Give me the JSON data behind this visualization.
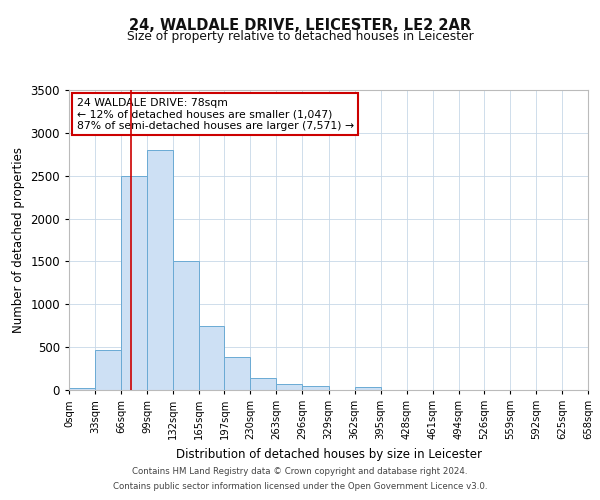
{
  "title": "24, WALDALE DRIVE, LEICESTER, LE2 2AR",
  "subtitle": "Size of property relative to detached houses in Leicester",
  "xlabel": "Distribution of detached houses by size in Leicester",
  "ylabel": "Number of detached properties",
  "bar_color": "#cde0f4",
  "bar_edge_color": "#6aaad4",
  "bin_edges": [
    0,
    33,
    66,
    99,
    132,
    165,
    197,
    230,
    263,
    296,
    329,
    362,
    395,
    428,
    461,
    494,
    526,
    559,
    592,
    625,
    658
  ],
  "bar_heights": [
    25,
    470,
    2500,
    2800,
    1500,
    750,
    390,
    140,
    75,
    50,
    0,
    30,
    0,
    0,
    0,
    0,
    0,
    0,
    0,
    0
  ],
  "tick_labels": [
    "0sqm",
    "33sqm",
    "66sqm",
    "99sqm",
    "132sqm",
    "165sqm",
    "197sqm",
    "230sqm",
    "263sqm",
    "296sqm",
    "329sqm",
    "362sqm",
    "395sqm",
    "428sqm",
    "461sqm",
    "494sqm",
    "526sqm",
    "559sqm",
    "592sqm",
    "625sqm",
    "658sqm"
  ],
  "ylim": [
    0,
    3500
  ],
  "yticks": [
    0,
    500,
    1000,
    1500,
    2000,
    2500,
    3000,
    3500
  ],
  "red_line_x": 78,
  "annotation_title": "24 WALDALE DRIVE: 78sqm",
  "annotation_line1": "← 12% of detached houses are smaller (1,047)",
  "annotation_line2": "87% of semi-detached houses are larger (7,571) →",
  "annotation_box_color": "#ffffff",
  "annotation_box_edge": "#cc0000",
  "footer1": "Contains HM Land Registry data © Crown copyright and database right 2024.",
  "footer2": "Contains public sector information licensed under the Open Government Licence v3.0.",
  "bg_color": "#ffffff",
  "grid_color": "#c8d8e8"
}
